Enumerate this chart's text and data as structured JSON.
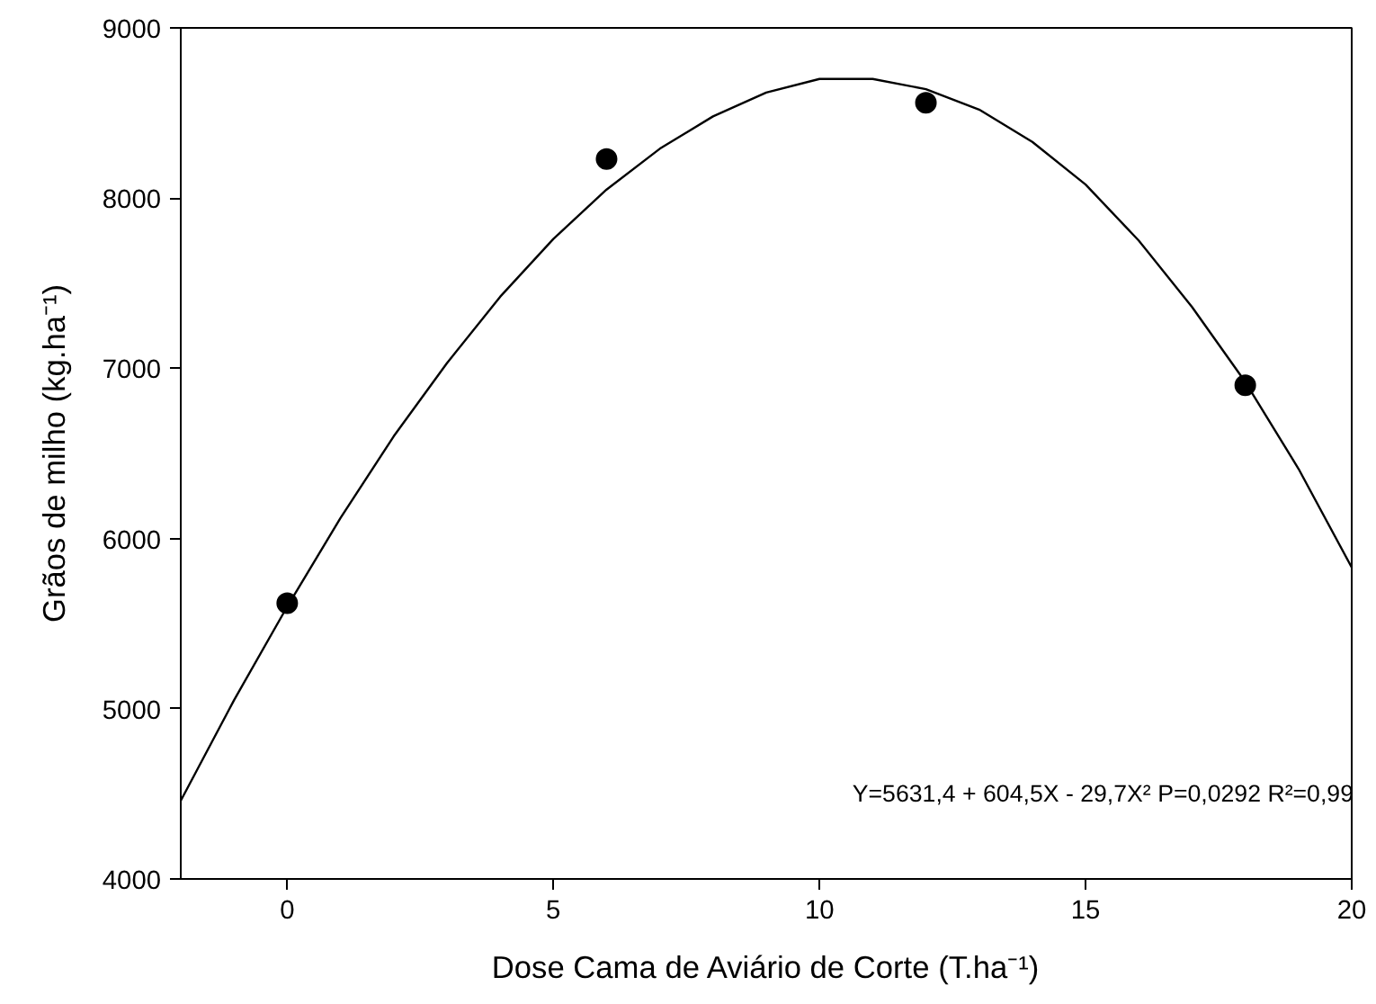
{
  "chart_data": {
    "type": "scatter",
    "xlabel": "Dose Cama de Aviário de Corte (T.ha⁻¹)",
    "ylabel": "Grãos de milho (kg.ha⁻¹)",
    "xlim": [
      -2,
      20
    ],
    "ylim": [
      4000,
      9000
    ],
    "xticks": [
      0,
      5,
      10,
      15,
      20
    ],
    "yticks": [
      4000,
      5000,
      6000,
      7000,
      8000,
      9000
    ],
    "grid": false,
    "marker": "circle",
    "series": [
      {
        "color": "#000000",
        "x": [
          0,
          6,
          12,
          18
        ],
        "values": [
          5620,
          8230,
          8560,
          6900
        ]
      },
      {
        "type": "line",
        "color": "#000000",
        "line_style": "solid",
        "marker": "none",
        "x": [
          -2,
          -1,
          0,
          1,
          2,
          3,
          4,
          5,
          6,
          7,
          8,
          9,
          10,
          11,
          12,
          13,
          14,
          15,
          16,
          17,
          18,
          19,
          20
        ],
        "values": [
          4460,
          5050,
          5600,
          6120,
          6600,
          7030,
          7420,
          7760,
          8050,
          8290,
          8480,
          8620,
          8700,
          8700,
          8640,
          8520,
          8330,
          8080,
          7750,
          7360,
          6920,
          6410,
          5830
        ]
      }
    ],
    "annotations": [
      "Y=5631,4 + 604,5X - 29,7X² P=0,0292 R²=0,99"
    ]
  }
}
